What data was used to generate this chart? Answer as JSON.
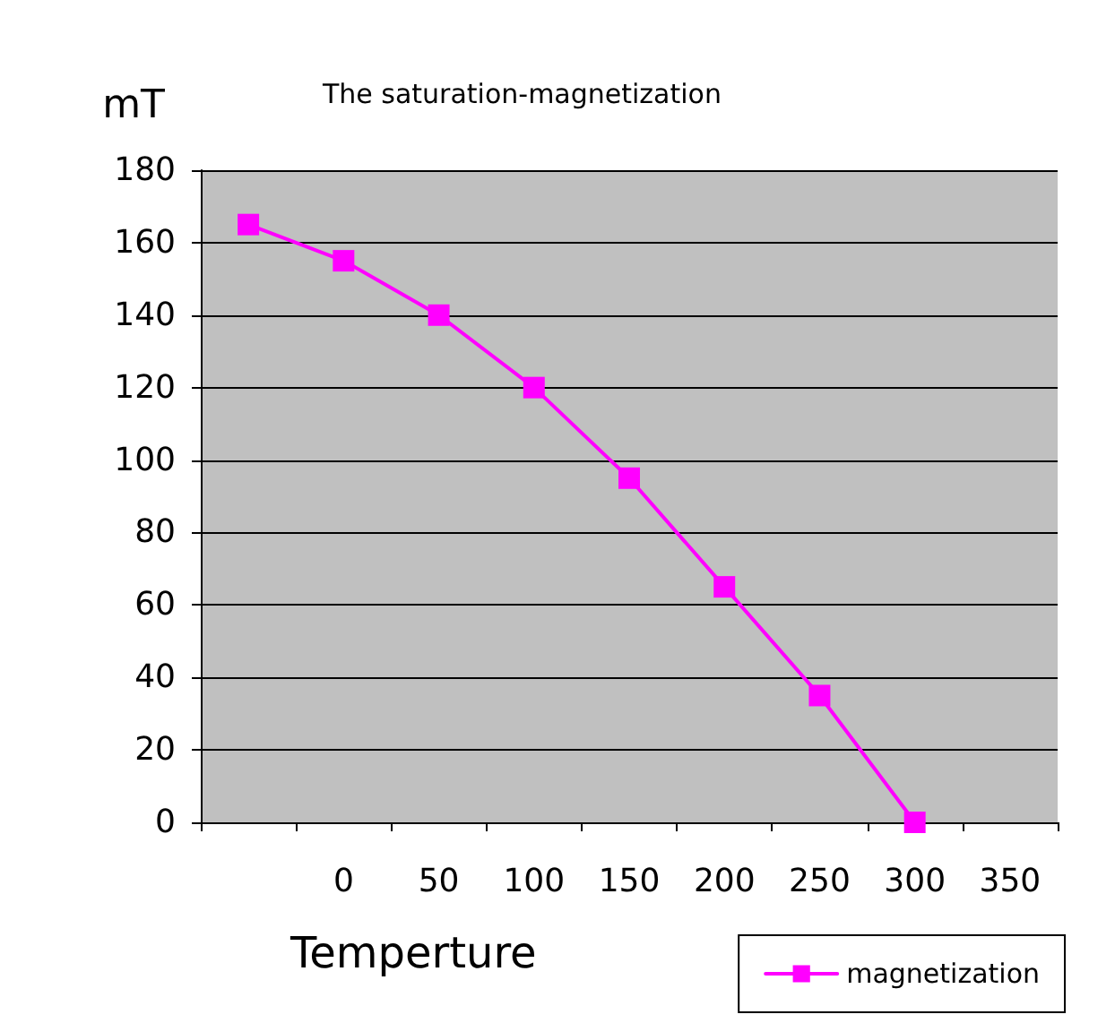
{
  "chart_data": {
    "type": "line",
    "title": "The saturation-magnetization",
    "xlabel": "Temperture",
    "ylabel": "mT",
    "categories": [
      null,
      "0",
      "50",
      "100",
      "150",
      "200",
      "250",
      "300",
      "350"
    ],
    "series": [
      {
        "name": "magnetization",
        "color": "#ff00ff",
        "values": [
          165,
          155,
          140,
          120,
          95,
          65,
          35,
          0,
          null
        ]
      }
    ],
    "ylim": [
      0,
      180
    ],
    "yticks": [
      0,
      20,
      40,
      60,
      80,
      100,
      120,
      140,
      160,
      180
    ],
    "grid": "y",
    "legend": "bottom right",
    "marker": "square",
    "line_style": "solid"
  }
}
